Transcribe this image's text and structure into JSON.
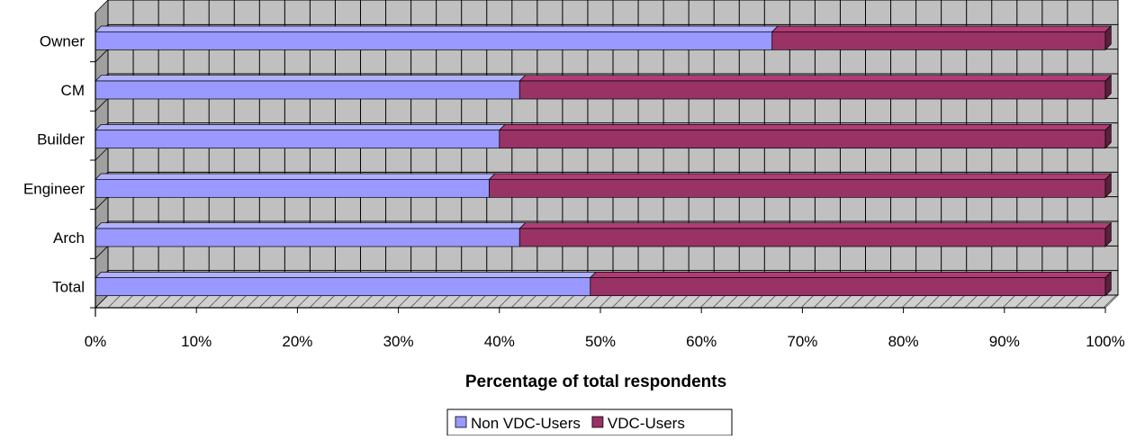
{
  "chart_data": {
    "type": "bar",
    "orientation": "horizontal",
    "stacked": "percent",
    "style": "3d",
    "categories": [
      "Owner",
      "CM",
      "Builder",
      "Engineer",
      "Arch",
      "Total"
    ],
    "series": [
      {
        "name": "Non VDC-Users",
        "values": [
          67,
          42,
          40,
          39,
          42,
          49
        ],
        "color": "#9999ff"
      },
      {
        "name": "VDC-Users",
        "values": [
          33,
          58,
          60,
          61,
          58,
          51
        ],
        "color": "#993366"
      }
    ],
    "x_ticks": [
      "0%",
      "10%",
      "20%",
      "30%",
      "40%",
      "50%",
      "60%",
      "70%",
      "80%",
      "90%",
      "100%"
    ],
    "xlim": [
      0,
      100
    ],
    "xlabel": "Percentage of total respondents",
    "ylabel": "",
    "title": "",
    "grid": true,
    "legend_position": "bottom",
    "colors": {
      "wall": "#c0c0c0",
      "wall_side": "#a0a0a0",
      "grid": "#000000",
      "floor": "#c8c8c8"
    }
  }
}
